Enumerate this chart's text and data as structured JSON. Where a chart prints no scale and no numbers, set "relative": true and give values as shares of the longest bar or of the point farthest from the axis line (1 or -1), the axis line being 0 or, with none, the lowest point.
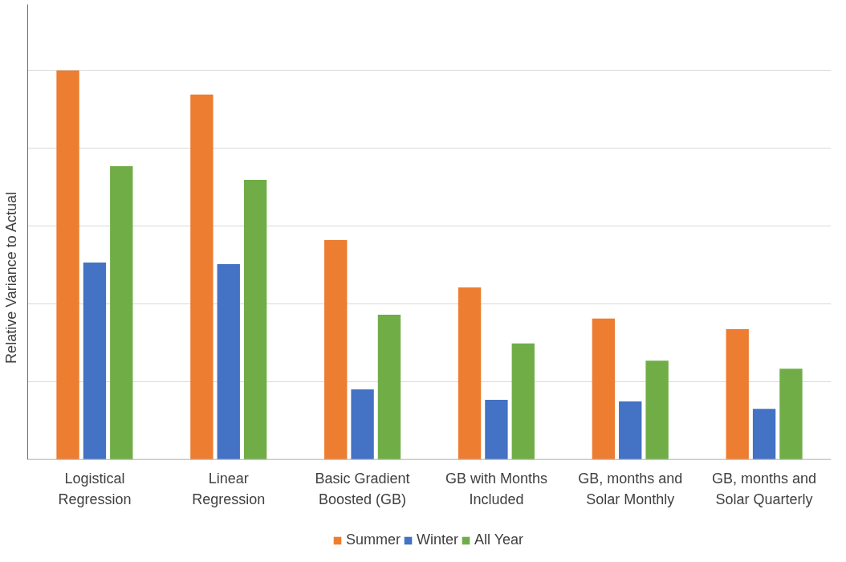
{
  "chart_data": {
    "type": "bar",
    "ylabel": "Relative Variance to Actual",
    "relative": true,
    "categories": [
      "Logistical Regression",
      "Linear Regression",
      "Basic Gradient Boosted (GB)",
      "GB with Months Included",
      "GB, months and Solar Monthly",
      "GB, months and Solar Quarterly"
    ],
    "series": [
      {
        "name": "Summer",
        "color": "#ed7d31",
        "values": [
          1.0,
          0.938,
          0.564,
          0.442,
          0.362,
          0.335
        ]
      },
      {
        "name": "Winter",
        "color": "#4472c4",
        "values": [
          0.506,
          0.502,
          0.18,
          0.153,
          0.149,
          0.13
        ]
      },
      {
        "name": "All Year",
        "color": "#70ad47",
        "values": [
          0.754,
          0.719,
          0.372,
          0.298,
          0.254,
          0.233
        ]
      }
    ],
    "grid": "y",
    "legend": "bottom"
  }
}
